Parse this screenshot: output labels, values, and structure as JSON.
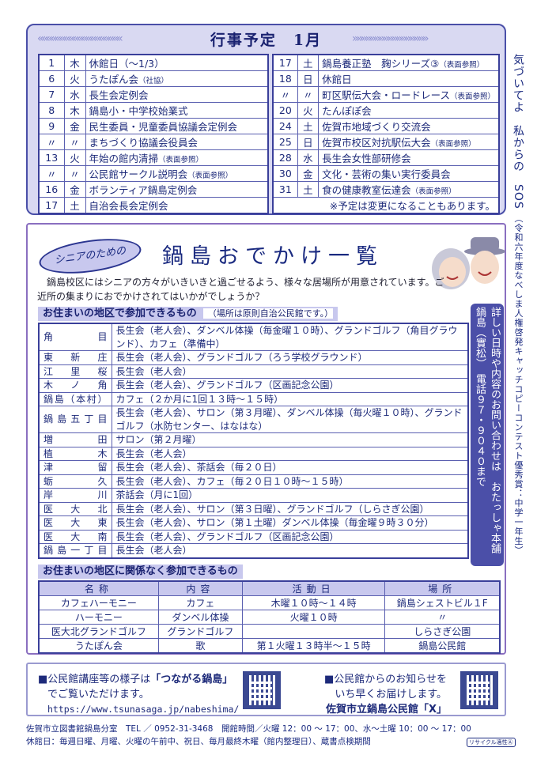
{
  "schedule": {
    "title": "行事予定　1月",
    "left": [
      {
        "day": "1",
        "dow": "木",
        "event": "休館日（～1/3）",
        "sub": ""
      },
      {
        "day": "6",
        "dow": "火",
        "event": "うたぽん会",
        "sub": "（社協）"
      },
      {
        "day": "7",
        "dow": "水",
        "event": "長生会定例会",
        "sub": ""
      },
      {
        "day": "8",
        "dow": "木",
        "event": "鍋島小・中学校始業式",
        "sub": ""
      },
      {
        "day": "9",
        "dow": "金",
        "event": "民生委員・児童委員協議会定例会",
        "sub": ""
      },
      {
        "day": "〃",
        "dow": "〃",
        "event": "まちづくり協議会役員会",
        "sub": ""
      },
      {
        "day": "13",
        "dow": "火",
        "event": "年始の館内清掃",
        "sub": "（表面参照）"
      },
      {
        "day": "〃",
        "dow": "〃",
        "event": "公民館サークル説明会",
        "sub": "（表面参照）"
      },
      {
        "day": "16",
        "dow": "金",
        "event": "ボランティア鍋島定例会",
        "sub": ""
      },
      {
        "day": "17",
        "dow": "土",
        "event": "自治会長会定例会",
        "sub": ""
      }
    ],
    "right": [
      {
        "day": "17",
        "dow": "土",
        "event": "鍋島養正塾　麹シリーズ③",
        "sub": "（表面参照）"
      },
      {
        "day": "18",
        "dow": "日",
        "event": "休館日",
        "sub": ""
      },
      {
        "day": "〃",
        "dow": "〃",
        "event": "町区駅伝大会・ロードレース",
        "sub": "（表面参照）"
      },
      {
        "day": "20",
        "dow": "火",
        "event": "たんぽぽ会",
        "sub": ""
      },
      {
        "day": "24",
        "dow": "土",
        "event": "佐賀市地域づくり交流会",
        "sub": ""
      },
      {
        "day": "25",
        "dow": "日",
        "event": "佐賀市校区対抗駅伝大会",
        "sub": "（表面参照）"
      },
      {
        "day": "28",
        "dow": "水",
        "event": "長生会女性部研修会",
        "sub": ""
      },
      {
        "day": "30",
        "dow": "金",
        "event": "文化・芸術の集い実行委員会",
        "sub": ""
      },
      {
        "day": "31",
        "dow": "土",
        "event": "食の健康教室伝達会",
        "sub": "（表面参照）"
      }
    ],
    "note": "※予定は変更になることもあります。"
  },
  "side_slogan": {
    "main": "気づいてよ　私からの　SOS",
    "credit": "（令和六年度なべしま人権啓発キャッチコピーコンテスト優秀賞：中学一年生）"
  },
  "outing": {
    "bubble": "シニアのための",
    "title": "鍋島おでかけ一覧",
    "intro": "鍋島校区にはシニアの方々がいきいきと過ごせるよう、様々な居場所が用意されています。ご近所の集まりにおでかけされてはいかがでしょうか？",
    "section1": "お住まいの地区で参加できるもの",
    "section1_note": "（場所は原則自治公民館です。）",
    "areas": [
      {
        "name": "角目",
        "info": "長生会（老人会）、ダンベル体操（毎金曜１０時）、グランドゴルフ（角目グラウンド）、カフェ（準備中）"
      },
      {
        "name": "東新庄",
        "info": "長生会（老人会）、グランドゴルフ（ろう学校グラウンド）"
      },
      {
        "name": "江里桜",
        "info": "長生会（老人会）"
      },
      {
        "name": "木ノ角",
        "info": "長生会（老人会）、グランドゴルフ（区画記念公園）"
      },
      {
        "name": "鍋島（本村）",
        "info": "カフェ（２か月に1回１３時～１５時）"
      },
      {
        "name": "鍋島五丁目",
        "info": "長生会（老人会）、サロン（第３月曜）、ダンベル体操（毎火曜１０時）、グランドゴルフ（水防センター、はなはな）"
      },
      {
        "name": "増田",
        "info": "サロン（第２月曜）"
      },
      {
        "name": "植木",
        "info": "長生会（老人会）"
      },
      {
        "name": "津留",
        "info": "長生会（老人会）、茶話会（毎２０日）"
      },
      {
        "name": "蛎久",
        "info": "長生会（老人会）、カフェ（毎２０日１０時～１５時）"
      },
      {
        "name": "岸川",
        "info": "茶話会（月に1回）"
      },
      {
        "name": "医大北",
        "info": "長生会（老人会）、サロン（第３日曜）、グランドゴルフ（しらさぎ公園）"
      },
      {
        "name": "医大東",
        "info": "長生会（老人会）、サロン（第１土曜）ダンベル体操（毎金曜９時３０分）"
      },
      {
        "name": "医大南",
        "info": "長生会（老人会）、グランドゴルフ（区画記念公園）"
      },
      {
        "name": "鍋島一丁目",
        "info": "長生会（老人会）"
      }
    ],
    "contact": "詳しい日時や内容のお問い合わせは　おたっしゃ本舗鍋島（實松）　電話９７・９０４０まで",
    "section2": "お住まいの地区に関係なく参加できるもの",
    "headers": [
      "名称",
      "内容",
      "活動日",
      "場所"
    ],
    "groups": [
      [
        "カフェハーモニー",
        "カフェ",
        "木曜１０時～１４時",
        "鍋島シェストビル１F"
      ],
      [
        "ハーモニー",
        "ダンベル体操",
        "火曜１０時",
        "〃"
      ],
      [
        "医大北グランドゴルフ",
        "グランドゴルフ",
        "",
        "しらさぎ公園"
      ],
      [
        "うたぽん会",
        "歌",
        "第１火曜１３時半～１５時",
        "鍋島公民館"
      ]
    ]
  },
  "bottom": {
    "left_prefix": "■公民館講座等の様子は",
    "left_bold": "「つながる鍋島」",
    "left_line2": "でご覧いただけます。",
    "url": "https://www.tsunasaga.jp/nabeshima/",
    "right_line1": "■公民館からのお知らせを",
    "right_line2": "いち早くお届けします。",
    "right_bold": "佐賀市立鍋島公民館「X」"
  },
  "footer": {
    "line1": "佐賀市立図書館鍋島分室　TEL ／ 0952-31-3468　開館時間／火曜 12：00 ～ 17：00、水～土曜 10：00 ～ 17：00",
    "line2": "休館日：毎週日曜、月曜、火曜の午前中、祝日、毎月最終木曜（館内整理日）、蔵書点検期間",
    "recycle": "リサイクル適性Ⓐ"
  },
  "colors": {
    "navy": "#1d2a7a",
    "lavender": "#d9d9f2",
    "box": "#4b4fa8"
  }
}
